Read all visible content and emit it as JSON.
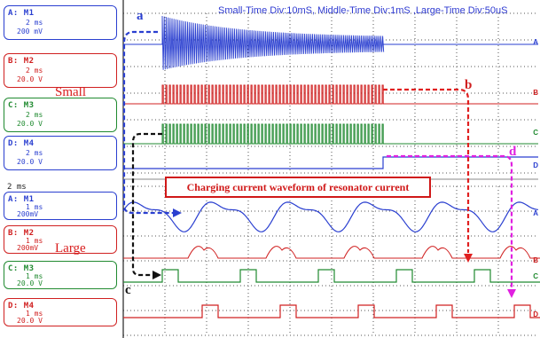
{
  "title": "Small-Time Div:10mS, Middle-Time Div:1mS ,Large-Time Div:50uS",
  "panels_top": [
    {
      "id": "A",
      "label": "A: M1",
      "line1": "2 ms",
      "line2": "200 mV",
      "color": "#2a3fd0"
    },
    {
      "id": "B",
      "label": "B: M2",
      "line1": "2 ms",
      "line2": "20.0  V",
      "color": "#d02020"
    },
    {
      "id": "C",
      "label": "C: M3",
      "line1": "2 ms",
      "line2": "20.0  V",
      "color": "#208a30"
    },
    {
      "id": "D",
      "label": "D: M4",
      "line1": "2 ms",
      "line2": "20.0  V",
      "color": "#2a3fd0"
    }
  ],
  "time_readout": "2 ms",
  "panels_bottom": [
    {
      "id": "A",
      "label": "A: M1",
      "line1": "1 ms",
      "line2": "200mV",
      "color": "#2a3fd0"
    },
    {
      "id": "B",
      "label": "B: M2",
      "line1": "1 ms",
      "line2": "200mV",
      "color": "#d02020"
    },
    {
      "id": "C",
      "label": "C: M3",
      "line1": "1 ms",
      "line2": "20.0  V",
      "color": "#208a30"
    },
    {
      "id": "D",
      "label": "D: M4",
      "line1": "1 ms",
      "line2": "20.0  V",
      "color": "#d02020"
    }
  ],
  "labels": {
    "small": "Small",
    "large": "Large"
  },
  "letters": {
    "a": "a",
    "b": "b",
    "c": "c",
    "d": "d"
  },
  "banner": "Charging current waveform of resonator current",
  "channel_markers": [
    "A",
    "B",
    "C",
    "D",
    "A",
    "B",
    "C",
    "D"
  ]
}
